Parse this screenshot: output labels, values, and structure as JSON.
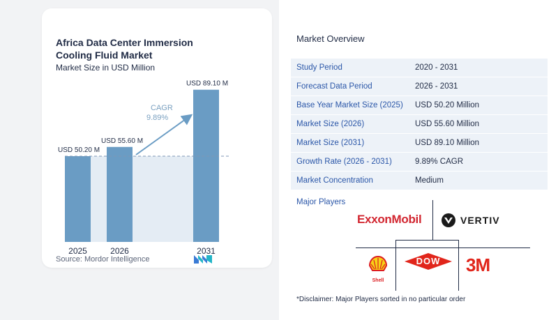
{
  "chart": {
    "title": "Africa Data Center Immersion Cooling Fluid Market",
    "subtitle": "Market Size in USD Million",
    "source": "Source:  Mordor Intelligence",
    "cagr_label": "CAGR",
    "cagr_value": "9.89%"
  },
  "chart_data": {
    "type": "bar",
    "title": "Africa Data Center Immersion Cooling Fluid Market",
    "subtitle": "Market Size in USD Million",
    "categories": [
      "2025",
      "2026",
      "2031"
    ],
    "values": [
      50.2,
      55.6,
      89.1
    ],
    "data_labels": [
      "USD 50.20 M",
      "USD 55.60 M",
      "USD 89.10 M"
    ],
    "ylim": [
      0,
      100
    ],
    "colors": {
      "bar": "#6a9cc4",
      "shaded": "#e4ecf4",
      "arrow": "#6a9cc4",
      "cagr_text": "#7aa0c0"
    }
  },
  "overview": {
    "title": "Market Overview",
    "rows": [
      {
        "label": "Study Period",
        "value": "2020 - 2031"
      },
      {
        "label": "Forecast Data Period",
        "value": "2026 - 2031"
      },
      {
        "label": "Base Year Market Size (2025)",
        "value": "USD 50.20 Million"
      },
      {
        "label": "Market Size (2026)",
        "value": "USD 55.60 Million"
      },
      {
        "label": "Market Size (2031)",
        "value": "USD 89.10 Million"
      },
      {
        "label": "Growth Rate (2026 - 2031)",
        "value": "9.89% CAGR"
      },
      {
        "label": "Market Concentration",
        "value": "Medium"
      }
    ]
  },
  "players": {
    "title": "Major Players",
    "exxon": "ExxonMobil",
    "vertiv": "VERTIV",
    "shell": "Shell",
    "dow": "DOW",
    "threem": "3M"
  },
  "disclaimer": "*Disclaimer: Major Players sorted in no particular order"
}
